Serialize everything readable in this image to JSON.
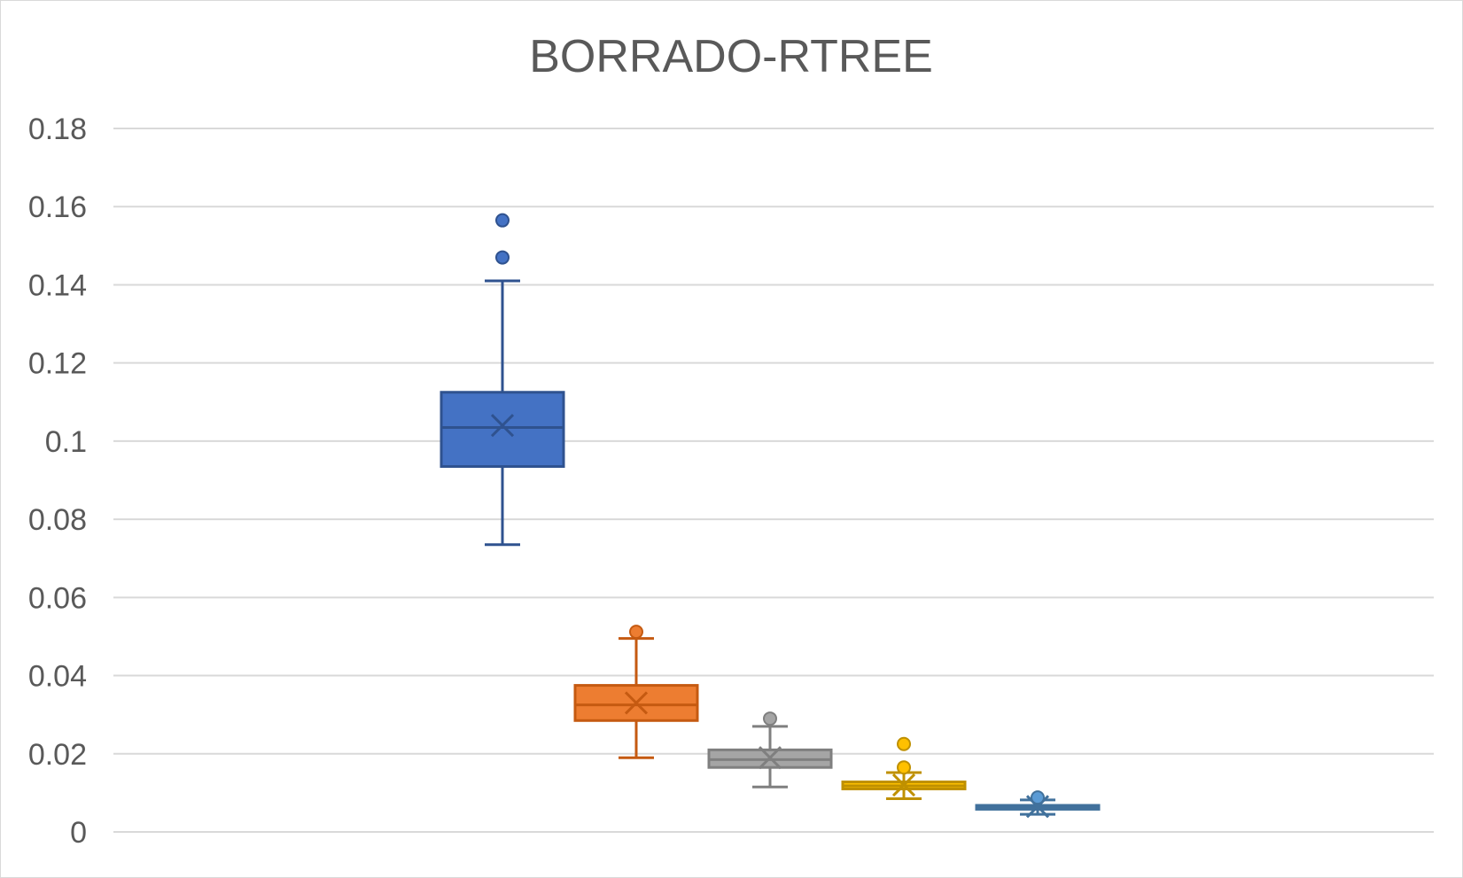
{
  "chart_data": {
    "type": "box",
    "title": "BORRADO-RTREE",
    "xlabel": "",
    "ylabel": "",
    "ylim": [
      0,
      0.18
    ],
    "y_ticks": [
      "0",
      "0.02",
      "0.04",
      "0.06",
      "0.08",
      "0.1",
      "0.12",
      "0.14",
      "0.16",
      "0.18"
    ],
    "grid": true,
    "legend": "none",
    "series": [
      {
        "color": "#4472C4",
        "stroke": "#2F528F",
        "whisker_low": 0.0735,
        "q1": 0.0935,
        "median": 0.1035,
        "q3": 0.1125,
        "whisker_high": 0.141,
        "mean": 0.104,
        "outliers": [
          0.147,
          0.1565
        ]
      },
      {
        "color": "#ED7D31",
        "stroke": "#C55A11",
        "whisker_low": 0.019,
        "q1": 0.0285,
        "median": 0.0325,
        "q3": 0.0375,
        "whisker_high": 0.0495,
        "mean": 0.033,
        "outliers": [
          0.0512
        ]
      },
      {
        "color": "#A5A5A5",
        "stroke": "#7F7F7F",
        "whisker_low": 0.0115,
        "q1": 0.0165,
        "median": 0.0185,
        "q3": 0.021,
        "whisker_high": 0.027,
        "mean": 0.019,
        "outliers": [
          0.029
        ]
      },
      {
        "color": "#FFC000",
        "stroke": "#BF9000",
        "whisker_low": 0.0085,
        "q1": 0.011,
        "median": 0.0118,
        "q3": 0.0128,
        "whisker_high": 0.0152,
        "mean": 0.012,
        "outliers": [
          0.0165,
          0.0225
        ]
      },
      {
        "color": "#5B9BD5",
        "stroke": "#41719C",
        "whisker_low": 0.0045,
        "q1": 0.0058,
        "median": 0.0062,
        "q3": 0.0068,
        "whisker_high": 0.0082,
        "mean": 0.0065,
        "outliers": [
          0.0088
        ]
      }
    ]
  },
  "style": {
    "gridline_color": "#D9D9D9",
    "axis_text_color": "#595959"
  }
}
